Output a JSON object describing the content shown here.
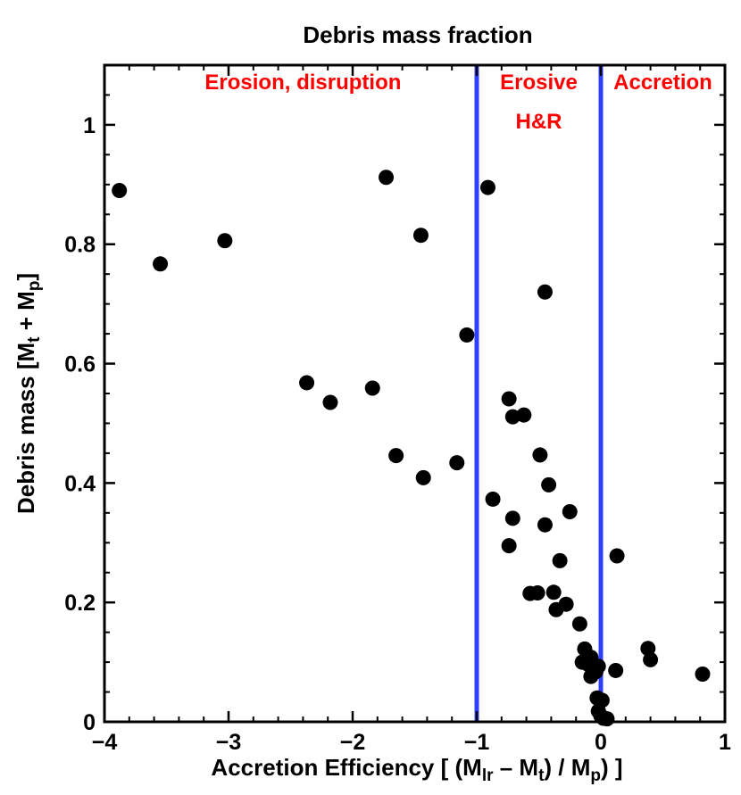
{
  "chart_data": {
    "type": "scatter",
    "title": "Debris mass fraction",
    "xlabel": {
      "parts": [
        {
          "text": "Accretion Efficiency [ (M",
          "sub": false
        },
        {
          "text": "lr",
          "sub": true
        },
        {
          "text": " – M",
          "sub": false
        },
        {
          "text": "t",
          "sub": true
        },
        {
          "text": ") / M",
          "sub": false
        },
        {
          "text": "p",
          "sub": true
        },
        {
          "text": ") ]",
          "sub": false
        }
      ]
    },
    "ylabel": {
      "parts": [
        {
          "text": "Debris mass [M",
          "sub": false
        },
        {
          "text": "t",
          "sub": true
        },
        {
          "text": " + M",
          "sub": false
        },
        {
          "text": "p",
          "sub": true
        },
        {
          "text": "]",
          "sub": false
        }
      ]
    },
    "xlim": [
      -4,
      1
    ],
    "ylim": [
      0,
      1.1
    ],
    "xticks": [
      -4,
      -3,
      -2,
      -1,
      0,
      1
    ],
    "xtick_labels": [
      "−4",
      "−3",
      "−2",
      "−1",
      "0",
      "1"
    ],
    "yticks": [
      0,
      0.2,
      0.4,
      0.6,
      0.8,
      1
    ],
    "ytick_labels": [
      "0",
      "0.2",
      "0.4",
      "0.6",
      "0.8",
      "1"
    ],
    "vertical_lines": [
      {
        "x": -1,
        "color": "#2f3fff"
      },
      {
        "x": 0,
        "color": "#2f3fff"
      }
    ],
    "regions": [
      {
        "lines": [
          "Erosion, disruption"
        ],
        "x": -2.4,
        "y": 1.06,
        "color": "#ff0000"
      },
      {
        "lines": [
          "Erosive",
          "H&R"
        ],
        "x": -0.5,
        "y": 1.06,
        "color": "#ff0000"
      },
      {
        "lines": [
          "Accretion"
        ],
        "x": 0.5,
        "y": 1.06,
        "color": "#ff0000"
      }
    ],
    "marker_color": "#000000",
    "points": [
      {
        "x": -3.88,
        "y": 0.89
      },
      {
        "x": -3.55,
        "y": 0.767
      },
      {
        "x": -3.03,
        "y": 0.806
      },
      {
        "x": -2.37,
        "y": 0.568
      },
      {
        "x": -2.18,
        "y": 0.535
      },
      {
        "x": -1.84,
        "y": 0.559
      },
      {
        "x": -1.73,
        "y": 0.912
      },
      {
        "x": -1.65,
        "y": 0.446
      },
      {
        "x": -1.45,
        "y": 0.815
      },
      {
        "x": -1.43,
        "y": 0.409
      },
      {
        "x": -1.16,
        "y": 0.434
      },
      {
        "x": -1.08,
        "y": 0.648
      },
      {
        "x": -0.91,
        "y": 0.895
      },
      {
        "x": -0.87,
        "y": 0.373
      },
      {
        "x": -0.74,
        "y": 0.541
      },
      {
        "x": -0.74,
        "y": 0.295
      },
      {
        "x": -0.71,
        "y": 0.511
      },
      {
        "x": -0.71,
        "y": 0.341
      },
      {
        "x": -0.62,
        "y": 0.514
      },
      {
        "x": -0.57,
        "y": 0.215
      },
      {
        "x": -0.51,
        "y": 0.216
      },
      {
        "x": -0.49,
        "y": 0.447
      },
      {
        "x": -0.45,
        "y": 0.72
      },
      {
        "x": -0.45,
        "y": 0.33
      },
      {
        "x": -0.42,
        "y": 0.397
      },
      {
        "x": -0.38,
        "y": 0.217
      },
      {
        "x": -0.36,
        "y": 0.188
      },
      {
        "x": -0.33,
        "y": 0.27
      },
      {
        "x": -0.28,
        "y": 0.197
      },
      {
        "x": -0.25,
        "y": 0.352
      },
      {
        "x": -0.17,
        "y": 0.164
      },
      {
        "x": -0.13,
        "y": 0.122
      },
      {
        "x": -0.15,
        "y": 0.1
      },
      {
        "x": -0.1,
        "y": 0.096
      },
      {
        "x": -0.08,
        "y": 0.108
      },
      {
        "x": -0.08,
        "y": 0.076
      },
      {
        "x": -0.05,
        "y": 0.09
      },
      {
        "x": -0.04,
        "y": 0.084
      },
      {
        "x": -0.02,
        "y": 0.093
      },
      {
        "x": -0.03,
        "y": 0.04
      },
      {
        "x": -0.02,
        "y": 0.018
      },
      {
        "x": 0.0,
        "y": 0.01
      },
      {
        "x": 0.02,
        "y": 0.006
      },
      {
        "x": 0.01,
        "y": 0.036
      },
      {
        "x": 0.05,
        "y": 0.005
      },
      {
        "x": 0.12,
        "y": 0.086
      },
      {
        "x": 0.13,
        "y": 0.278
      },
      {
        "x": 0.38,
        "y": 0.123
      },
      {
        "x": 0.4,
        "y": 0.104
      },
      {
        "x": 0.82,
        "y": 0.08
      }
    ]
  }
}
